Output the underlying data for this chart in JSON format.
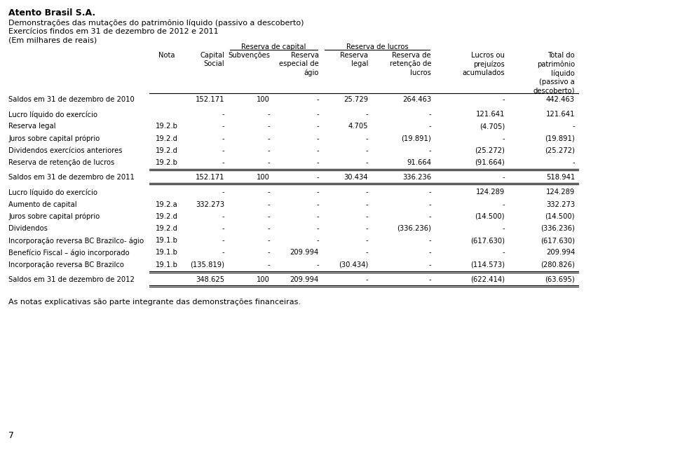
{
  "title_company": "Atento Brasil S.A.",
  "title_line1": "Demonstrações das mutações do patrimônio líquido (passivo a descoberto)",
  "title_line2": "Exercícios findos em 31 de dezembro de 2012 e 2011",
  "title_line3": "(Em milhares de reais)",
  "header_group1": "Reserva de capital",
  "header_group2": "Reserva de lucros",
  "rows": [
    {
      "label": "Saldos em 31 de dezembro de 2010",
      "nota": "",
      "values": [
        "152.171",
        "100",
        "-",
        "25.729",
        "264.463",
        "-",
        "442.463"
      ],
      "bold": false,
      "saldo": true,
      "border_top": false,
      "border_bottom": false
    },
    {
      "label": "Lucro líquido do exercício",
      "nota": "",
      "values": [
        "-",
        "-",
        "-",
        "-",
        "-",
        "121.641",
        "121.641"
      ],
      "bold": false,
      "saldo": false,
      "border_top": false,
      "border_bottom": false
    },
    {
      "label": "Reserva legal",
      "nota": "19.2.b",
      "values": [
        "-",
        "-",
        "-",
        "4.705",
        "-",
        "(4.705)",
        "-"
      ],
      "bold": false,
      "saldo": false,
      "border_top": false,
      "border_bottom": false
    },
    {
      "label": "Juros sobre capital próprio",
      "nota": "19.2.d",
      "values": [
        "-",
        "-",
        "-",
        "-",
        "(19.891)",
        "-",
        "(19.891)"
      ],
      "bold": false,
      "saldo": false,
      "border_top": false,
      "border_bottom": false
    },
    {
      "label": "Dividendos exercícios anteriores",
      "nota": "19.2.d",
      "values": [
        "-",
        "-",
        "-",
        "-",
        "-",
        "(25.272)",
        "(25.272)"
      ],
      "bold": false,
      "saldo": false,
      "border_top": false,
      "border_bottom": false
    },
    {
      "label": "Reserva de retenção de lucros",
      "nota": "19.2.b",
      "values": [
        "-",
        "-",
        "-",
        "-",
        "91.664",
        "(91.664)",
        "-"
      ],
      "bold": false,
      "saldo": false,
      "border_top": false,
      "border_bottom": false
    },
    {
      "label": "Saldos em 31 de dezembro de 2011",
      "nota": "",
      "values": [
        "152.171",
        "100",
        "-",
        "30.434",
        "336.236",
        "-",
        "518.941"
      ],
      "bold": false,
      "saldo": true,
      "border_top": true,
      "border_bottom": true
    },
    {
      "label": "Lucro líquido do exercício",
      "nota": "",
      "values": [
        "-",
        "-",
        "-",
        "-",
        "-",
        "124.289",
        "124.289"
      ],
      "bold": false,
      "saldo": false,
      "border_top": false,
      "border_bottom": false
    },
    {
      "label": "Aumento de capital",
      "nota": "19.2.a",
      "values": [
        "332.273",
        "-",
        "-",
        "-",
        "-",
        "-",
        "332.273"
      ],
      "bold": false,
      "saldo": false,
      "border_top": false,
      "border_bottom": false
    },
    {
      "label": "Juros sobre capital próprio",
      "nota": "19.2.d",
      "values": [
        "-",
        "-",
        "-",
        "-",
        "-",
        "(14.500)",
        "(14.500)"
      ],
      "bold": false,
      "saldo": false,
      "border_top": false,
      "border_bottom": false
    },
    {
      "label": "Dividendos",
      "nota": "19.2.d",
      "values": [
        "-",
        "-",
        "-",
        "-",
        "(336.236)",
        "-",
        "(336.236)"
      ],
      "bold": false,
      "saldo": false,
      "border_top": false,
      "border_bottom": false
    },
    {
      "label": "Incorporação reversa BC Brazilco- ágio",
      "nota": "19.1.b",
      "values": [
        "-",
        "-",
        "-",
        "-",
        "-",
        "(617.630)",
        "(617.630)"
      ],
      "bold": false,
      "saldo": false,
      "border_top": false,
      "border_bottom": false
    },
    {
      "label": "Benefício Fiscal – ágio incorporado",
      "nota": "19.1.b",
      "values": [
        "-",
        "-",
        "209.994",
        "-",
        "-",
        "-",
        "209.994"
      ],
      "bold": false,
      "saldo": false,
      "border_top": false,
      "border_bottom": false
    },
    {
      "label": "Incorporação reversa BC Brazilco",
      "nota": "19.1.b",
      "values": [
        "(135.819)",
        "-",
        "-",
        "(30.434)",
        "-",
        "(114.573)",
        "(280.826)"
      ],
      "bold": false,
      "saldo": false,
      "border_top": false,
      "border_bottom": false
    },
    {
      "label": "Saldos em 31 de dezembro de 2012",
      "nota": "",
      "values": [
        "348.625",
        "100",
        "209.994",
        "-",
        "-",
        "(622.414)",
        "(63.695)"
      ],
      "bold": false,
      "saldo": true,
      "border_top": true,
      "border_bottom": true
    }
  ],
  "footer": "As notas explicativas são parte integrante das demonstrações financeiras.",
  "page_number": "7",
  "bg_color": "#ffffff",
  "text_color": "#000000",
  "font_size": 7.2,
  "header_font_size": 7.2,
  "title_font_size": 9.0,
  "subtitle_font_size": 8.0
}
